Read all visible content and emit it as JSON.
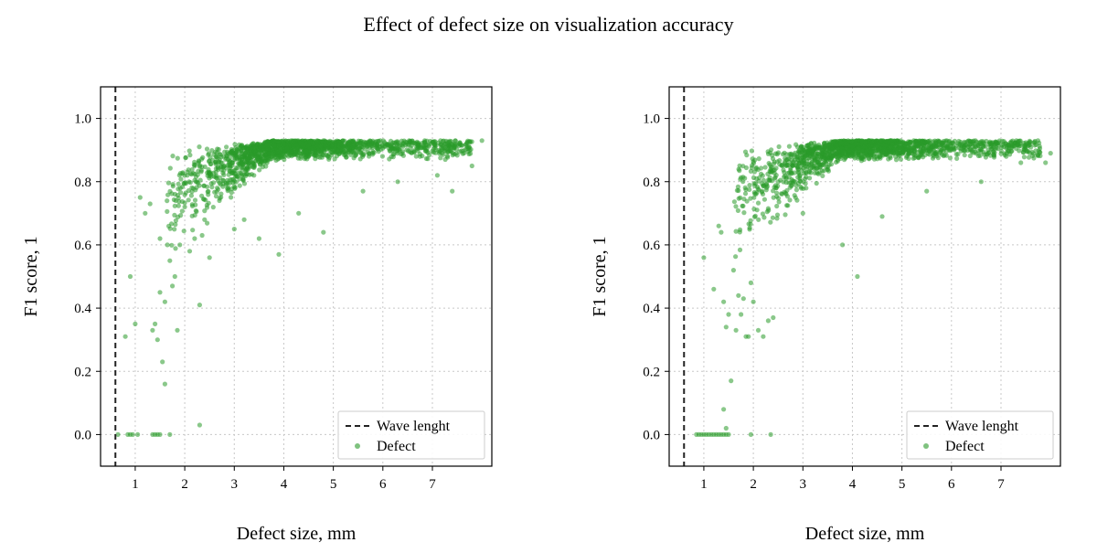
{
  "figure": {
    "title": "Effect of defect size on visualization accuracy"
  },
  "colors": {
    "points": "#2a9a2a",
    "wavelength_line": "#222222",
    "grid": "#c8c8c8"
  },
  "chart_data": [
    {
      "type": "scatter",
      "title": "",
      "xlabel": "Defect size, mm",
      "ylabel": "F1 score, 1",
      "xlim": [
        0.3,
        8.2
      ],
      "ylim": [
        -0.1,
        1.1
      ],
      "xticks": [
        "1",
        "2",
        "3",
        "4",
        "5",
        "6",
        "7"
      ],
      "yticks": [
        "0.0",
        "0.2",
        "0.4",
        "0.6",
        "0.8",
        "1.0"
      ],
      "grid": true,
      "legend": {
        "position": "lower-right",
        "entries": [
          "Wave lenght",
          "Defect"
        ]
      },
      "wavelength_x": 0.6,
      "series": [
        {
          "name": "Defect",
          "x": [
            0.65,
            0.85,
            0.9,
            0.95,
            1.05,
            1.35,
            1.4,
            1.45,
            1.5,
            1.7,
            2.3,
            0.8,
            0.9,
            1.0,
            1.1,
            1.2,
            1.3,
            1.35,
            1.4,
            1.45,
            1.5,
            1.5,
            1.55,
            1.6,
            1.6,
            1.65,
            1.7,
            1.75,
            1.8,
            1.85,
            1.9,
            2.0,
            2.1,
            2.2,
            2.3,
            2.35,
            2.4,
            2.5,
            2.7,
            3.0,
            3.2,
            3.5,
            3.9,
            4.3,
            4.8,
            5.6,
            6.3,
            7.1,
            7.4,
            7.8,
            8.0
          ],
          "y": [
            0.0,
            0.0,
            0.0,
            0.0,
            0.0,
            0.0,
            0.0,
            0.0,
            0.0,
            0.0,
            0.03,
            0.31,
            0.5,
            0.35,
            0.75,
            0.7,
            0.73,
            0.33,
            0.35,
            0.3,
            0.45,
            0.62,
            0.23,
            0.42,
            0.16,
            0.6,
            0.55,
            0.47,
            0.5,
            0.33,
            0.6,
            0.72,
            0.58,
            0.62,
            0.41,
            0.63,
            0.68,
            0.56,
            0.74,
            0.65,
            0.68,
            0.62,
            0.57,
            0.7,
            0.64,
            0.77,
            0.8,
            0.82,
            0.77,
            0.85,
            0.93
          ]
        }
      ],
      "cloud": {
        "x_range": [
          1.6,
          7.8
        ],
        "count": 1700,
        "x_mode": 4.0,
        "y_plateau": [
          0.85,
          0.91
        ],
        "y_rise_from": 0.6
      }
    },
    {
      "type": "scatter",
      "title": "",
      "xlabel": "Defect size, mm",
      "ylabel": "F1 score, 1",
      "xlim": [
        0.3,
        8.2
      ],
      "ylim": [
        -0.1,
        1.1
      ],
      "xticks": [
        "1",
        "2",
        "3",
        "4",
        "5",
        "6",
        "7"
      ],
      "yticks": [
        "0.0",
        "0.2",
        "0.4",
        "0.6",
        "0.8",
        "1.0"
      ],
      "grid": true,
      "legend": {
        "position": "lower-right",
        "entries": [
          "Wave lenght",
          "Defect"
        ]
      },
      "wavelength_x": 0.6,
      "series": [
        {
          "name": "Defect",
          "x": [
            0.85,
            0.9,
            0.95,
            1.0,
            1.05,
            1.1,
            1.15,
            1.2,
            1.25,
            1.3,
            1.35,
            1.4,
            1.45,
            1.5,
            1.95,
            2.35,
            1.0,
            1.2,
            1.3,
            1.4,
            1.45,
            1.5,
            1.55,
            1.6,
            1.65,
            1.7,
            1.75,
            1.8,
            1.85,
            1.9,
            1.95,
            2.0,
            2.1,
            2.2,
            2.3,
            2.4,
            1.4,
            1.45,
            1.35,
            3.0,
            3.8,
            4.1,
            4.6,
            5.5,
            6.6,
            7.4,
            7.9,
            8.0
          ],
          "y": [
            0.0,
            0.0,
            0.0,
            0.0,
            0.0,
            0.0,
            0.0,
            0.0,
            0.0,
            0.0,
            0.0,
            0.0,
            0.0,
            0.0,
            0.0,
            0.0,
            0.56,
            0.46,
            0.66,
            0.42,
            0.34,
            0.38,
            0.17,
            0.52,
            0.33,
            0.44,
            0.38,
            0.43,
            0.31,
            0.31,
            0.48,
            0.42,
            0.33,
            0.31,
            0.36,
            0.37,
            0.08,
            0.02,
            0.64,
            0.7,
            0.6,
            0.5,
            0.69,
            0.77,
            0.8,
            0.86,
            0.86,
            0.89
          ]
        }
      ],
      "cloud": {
        "x_range": [
          1.6,
          7.8
        ],
        "count": 1700,
        "x_mode": 4.0,
        "y_plateau": [
          0.85,
          0.91
        ],
        "y_rise_from": 0.6
      }
    }
  ]
}
